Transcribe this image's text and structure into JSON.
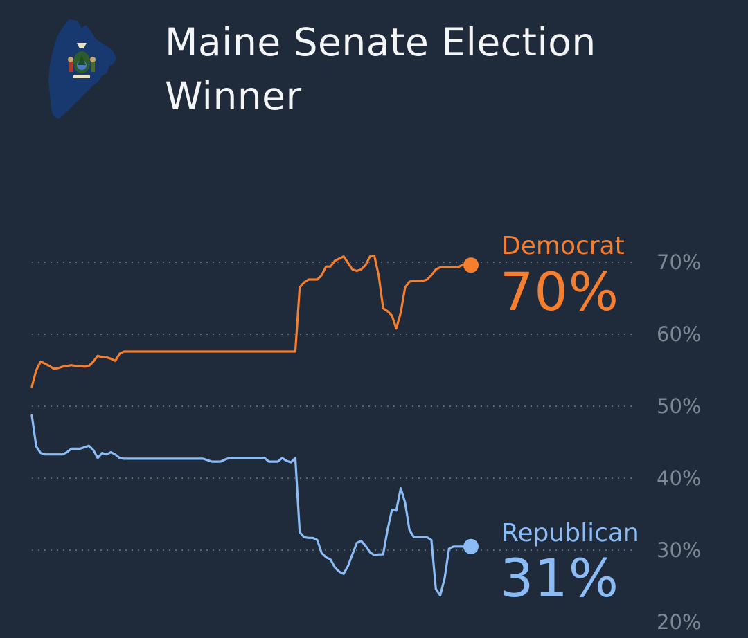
{
  "header": {
    "title": "Maine Senate Election Winner",
    "icon": "maine-state-flag-icon"
  },
  "chart_data": {
    "type": "line",
    "title": "Maine Senate Election Winner",
    "xlabel": "",
    "ylabel": "",
    "ylim": [
      20,
      70
    ],
    "yticks": [
      "70%",
      "60%",
      "50%",
      "40%",
      "30%",
      "20%"
    ],
    "grid": true,
    "x": [
      0,
      1,
      2,
      3,
      4,
      5,
      6,
      7,
      8,
      9,
      10,
      11,
      12,
      13,
      14,
      15,
      16,
      17,
      18,
      19,
      20,
      21,
      22,
      23,
      24,
      25,
      26,
      27,
      28,
      29,
      30,
      31,
      32,
      33,
      34,
      35,
      36,
      37,
      38,
      39,
      40,
      41,
      42,
      43,
      44,
      45,
      46,
      47,
      48,
      49,
      50,
      51,
      52,
      53,
      54,
      55,
      56,
      57,
      58,
      59,
      60,
      61,
      62,
      63,
      64,
      65,
      66,
      67,
      68,
      69,
      70,
      71,
      72,
      73,
      74,
      75,
      76,
      77,
      78,
      79,
      80,
      81,
      82,
      83,
      84,
      85,
      86,
      87,
      88,
      89,
      90,
      91,
      92,
      93,
      94,
      95,
      96,
      97,
      98,
      99,
      100
    ],
    "series": [
      {
        "name": "Democrat",
        "color": "#f57e2f",
        "final_label": "70%",
        "values": [
          52.7,
          55,
          56.2,
          55.9,
          55.6,
          55.2,
          55.3,
          55.5,
          55.6,
          55.7,
          55.6,
          55.6,
          55.5,
          55.6,
          56.2,
          57,
          56.8,
          56.8,
          56.6,
          56.3,
          57.3,
          57.6,
          57.6,
          57.6,
          57.6,
          57.6,
          57.6,
          57.6,
          57.6,
          57.6,
          57.6,
          57.6,
          57.6,
          57.6,
          57.6,
          57.6,
          57.6,
          57.6,
          57.6,
          57.6,
          57.6,
          57.6,
          57.6,
          57.6,
          57.6,
          57.6,
          57.6,
          57.6,
          57.6,
          57.6,
          57.6,
          57.6,
          57.6,
          57.6,
          57.6,
          57.6,
          57.6,
          57.6,
          57.6,
          57.6,
          57.6,
          66.5,
          67.2,
          67.6,
          67.6,
          67.6,
          68.2,
          69.4,
          69.4,
          70.2,
          70.5,
          70.8,
          69.9,
          69,
          68.8,
          69,
          69.6,
          70.8,
          70.9,
          68.1,
          63.6,
          63.2,
          62.6,
          60.8,
          63,
          66.5,
          67.3,
          67.4,
          67.4,
          67.4,
          67.6,
          68.2,
          69,
          69.3,
          69.3,
          69.3,
          69.3,
          69.3,
          69.6,
          69.6,
          69.6
        ]
      },
      {
        "name": "Republican",
        "color": "#8cbcf6",
        "final_label": "31%",
        "values": [
          48.7,
          44.4,
          43.5,
          43.3,
          43.3,
          43.3,
          43.3,
          43.3,
          43.6,
          44.1,
          44.1,
          44.1,
          44.3,
          44.5,
          43.9,
          42.8,
          43.5,
          43.3,
          43.6,
          43.3,
          42.8,
          42.7,
          42.7,
          42.7,
          42.7,
          42.7,
          42.7,
          42.7,
          42.7,
          42.7,
          42.7,
          42.7,
          42.7,
          42.7,
          42.7,
          42.7,
          42.7,
          42.7,
          42.7,
          42.7,
          42.5,
          42.3,
          42.3,
          42.3,
          42.6,
          42.8,
          42.8,
          42.8,
          42.8,
          42.8,
          42.8,
          42.8,
          42.8,
          42.8,
          42.3,
          42.3,
          42.3,
          42.8,
          42.4,
          42.2,
          42.8,
          32.5,
          31.8,
          31.7,
          31.7,
          31.4,
          29.6,
          29,
          28.7,
          27.6,
          27,
          26.7,
          27.8,
          29.4,
          31,
          31.3,
          30.6,
          29.7,
          29.3,
          29.4,
          29.4,
          32.8,
          35.6,
          35.5,
          38.6,
          36.6,
          32.8,
          31.8,
          31.8,
          31.8,
          31.8,
          31.4,
          24.6,
          23.7,
          26.1,
          30.2,
          30.5,
          30.5,
          30.5,
          30.5,
          30.5
        ]
      }
    ]
  }
}
